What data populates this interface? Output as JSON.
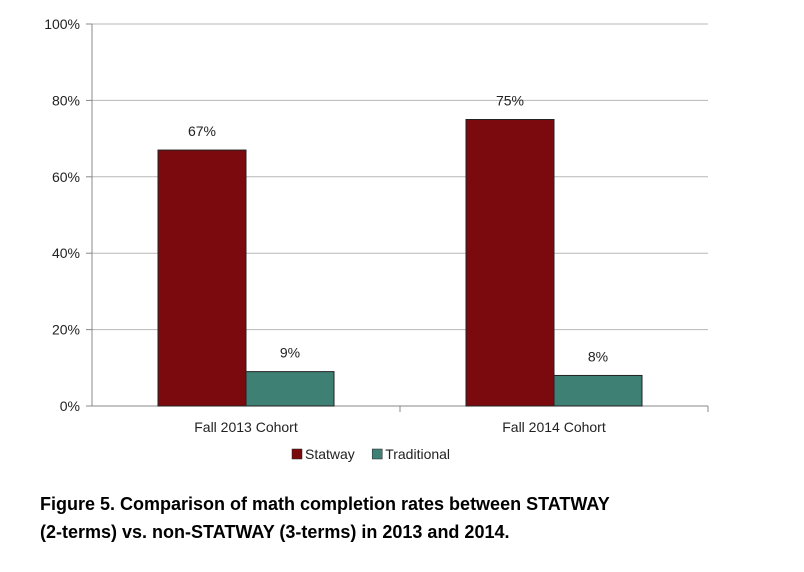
{
  "chart_data": {
    "type": "bar",
    "categories": [
      "Fall 2013 Cohort",
      "Fall 2014 Cohort"
    ],
    "series": [
      {
        "name": "Statway",
        "values": [
          67,
          75
        ],
        "color": "#7a0a0e",
        "labels": [
          "67%",
          "75%"
        ]
      },
      {
        "name": "Traditional",
        "values": [
          9,
          8
        ],
        "color": "#3f8074",
        "labels": [
          "9%",
          "8%"
        ]
      }
    ],
    "ylim": [
      0,
      100
    ],
    "yticks": [
      {
        "value": 0,
        "label": "0%"
      },
      {
        "value": 20,
        "label": "20%"
      },
      {
        "value": 40,
        "label": "40%"
      },
      {
        "value": 60,
        "label": "60%"
      },
      {
        "value": 80,
        "label": "80%"
      },
      {
        "value": 100,
        "label": "100%"
      }
    ],
    "grid": true,
    "legend_position": "bottom",
    "title": "",
    "xlabel": "",
    "ylabel": ""
  },
  "caption": {
    "line1": "Figure 5. Comparison of math completion rates between STATWAY",
    "line2": "(2-terms) vs. non-STATWAY (3-terms) in 2013 and 2014."
  }
}
